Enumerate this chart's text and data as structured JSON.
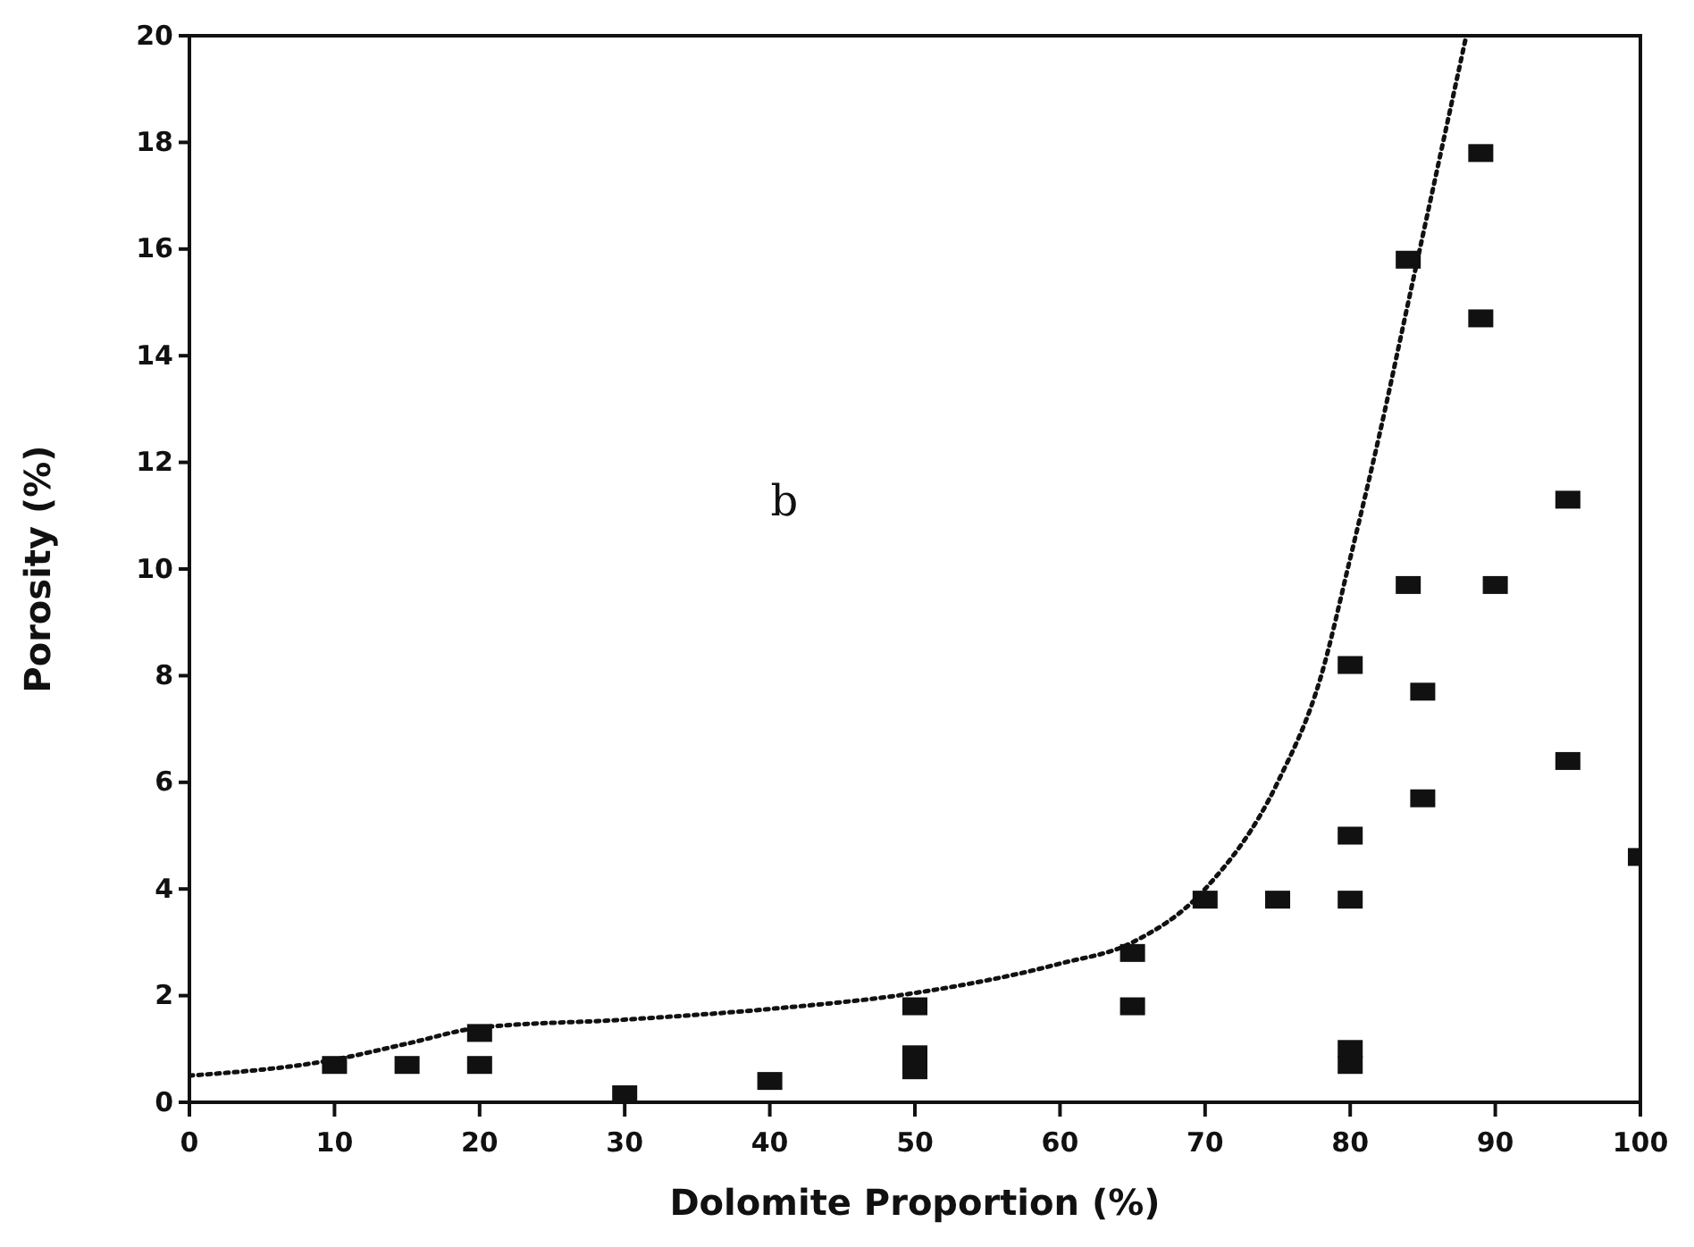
{
  "chart_data": {
    "type": "scatter",
    "xlabel": "Dolomite Proportion (%)",
    "ylabel": "Porosity (%)",
    "annotations": [
      "b"
    ],
    "xlim": [
      0,
      100
    ],
    "xticks": [
      0,
      10,
      20,
      30,
      40,
      50,
      60,
      70,
      80,
      90,
      100
    ],
    "ylim": [
      0,
      20
    ],
    "yticks": [
      0,
      2,
      4,
      6,
      8,
      10,
      12,
      14,
      16,
      18,
      20
    ],
    "grid": false,
    "series": [
      {
        "color": "#111111",
        "marker": "square",
        "x": [
          10,
          15,
          20,
          20,
          30,
          40,
          50,
          50,
          50,
          65,
          65,
          70,
          75,
          80,
          80,
          80,
          80,
          80,
          84,
          84,
          85,
          85,
          89,
          89,
          90,
          95,
          95,
          100
        ],
        "values": [
          0.7,
          0.7,
          1.3,
          0.7,
          0.15,
          0.4,
          1.8,
          0.9,
          0.6,
          2.8,
          1.8,
          3.8,
          3.8,
          3.8,
          5.0,
          8.2,
          1.0,
          0.7,
          15.8,
          9.7,
          7.7,
          5.7,
          17.8,
          14.7,
          9.7,
          11.3,
          6.4,
          4.6
        ]
      },
      {
        "type": "line",
        "color": "#111111",
        "marker": "none",
        "line_style": "dotted",
        "x": [
          0,
          10,
          15,
          20,
          30,
          40,
          50,
          60,
          65,
          70,
          75,
          78,
          80,
          82,
          84,
          86,
          88
        ],
        "values": [
          0.5,
          0.8,
          1.1,
          1.4,
          1.55,
          1.75,
          2.05,
          2.6,
          3.0,
          4.0,
          6.0,
          8.0,
          10.2,
          12.5,
          15,
          17.5,
          20
        ]
      }
    ]
  }
}
